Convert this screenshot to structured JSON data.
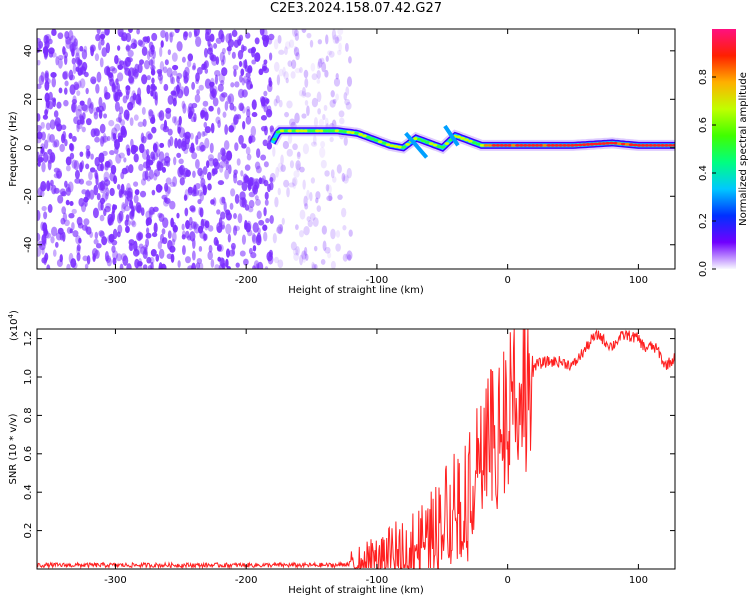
{
  "title": "C2E3.2024.158.07.42.G27",
  "colors": {
    "snr_line": "#ff2020",
    "spectrum_noise": "#7a2cff",
    "colorbar": [
      "#f8f8ff",
      "#7000ff",
      "#0030ff",
      "#00c8ff",
      "#00ff80",
      "#40ff00",
      "#c0ff00",
      "#ffb000",
      "#ff2000",
      "#ff1080"
    ]
  },
  "chart_data": [
    {
      "type": "heatmap",
      "title": "C2E3.2024.158.07.42.G27",
      "xlabel": "Height of straight line (km)",
      "ylabel": "Frequency (Hz)",
      "xlim": [
        -360,
        128
      ],
      "ylim": [
        -50,
        49
      ],
      "xticks": [
        -300,
        -200,
        -100,
        0,
        100
      ],
      "yticks": [
        -40,
        -20,
        0,
        20,
        40
      ],
      "colorbar": {
        "label": "Normalized spectral amplitude",
        "range": [
          0,
          1
        ],
        "ticks": [
          0.0,
          0.2,
          0.4,
          0.6,
          0.8
        ]
      },
      "signal_track": {
        "x": [
          -180,
          -175,
          -165,
          -150,
          -130,
          -115,
          -100,
          -90,
          -80,
          -70,
          -60,
          -50,
          -40,
          -30,
          -20,
          0,
          20,
          50,
          80,
          100,
          128
        ],
        "frequency": [
          2,
          7,
          7,
          7,
          7,
          6,
          3,
          1,
          0,
          4,
          2,
          0,
          5,
          3,
          1,
          1,
          1,
          1,
          2,
          1,
          1
        ]
      },
      "noise_region_x": [
        -360,
        -130
      ]
    },
    {
      "type": "line",
      "title": "",
      "xlabel": "Height of straight line (km)",
      "ylabel": "SNR (10 * v/v)",
      "y_scale_label": "(x10",
      "y_scale_exponent": "4",
      "y_scale_suffix": ")",
      "xlim": [
        -360,
        128
      ],
      "ylim": [
        0,
        1.25
      ],
      "xticks": [
        -300,
        -200,
        -100,
        0,
        100
      ],
      "yticks": [
        0.2,
        0.4,
        0.6,
        0.8,
        1.0,
        1.2
      ],
      "ytick_labels": [
        "0.2",
        "0.4",
        "0.6",
        "0.8",
        "1.0",
        "1.2"
      ],
      "series": [
        {
          "x": [
            -360,
            -300,
            -250,
            -200,
            -150,
            -130,
            -120,
            -100,
            -80,
            -70,
            -60,
            -50,
            -45,
            -40,
            -35,
            -30,
            -25,
            -20,
            -15,
            -10,
            -5,
            0,
            5,
            10,
            15,
            20,
            25,
            30,
            40,
            50,
            60,
            65,
            70,
            75,
            80,
            85,
            90,
            95,
            100,
            105,
            110,
            115,
            120,
            125,
            128
          ],
          "y": [
            0.02,
            0.02,
            0.02,
            0.02,
            0.02,
            0.02,
            0.03,
            0.06,
            0.1,
            0.13,
            0.17,
            0.25,
            0.33,
            0.38,
            0.42,
            0.45,
            0.52,
            0.58,
            0.65,
            0.72,
            0.8,
            0.9,
            0.95,
            1.0,
            1.05,
            1.06,
            1.07,
            1.08,
            1.08,
            1.06,
            1.15,
            1.2,
            1.22,
            1.18,
            1.16,
            1.2,
            1.22,
            1.21,
            1.2,
            1.15,
            1.16,
            1.14,
            1.06,
            1.08,
            1.1
          ]
        }
      ]
    }
  ]
}
